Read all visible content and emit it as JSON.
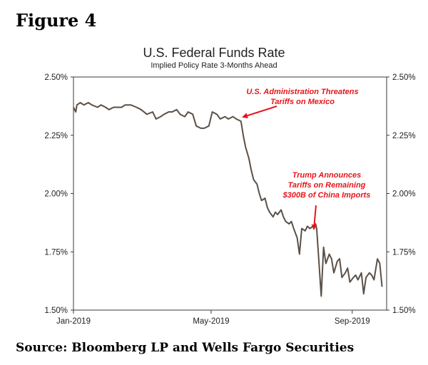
{
  "figure_label": "Figure 4",
  "source": "Source: Bloomberg LP and Wells Fargo Securities",
  "chart_data": {
    "type": "line",
    "title": "U.S. Federal Funds Rate",
    "subtitle": "Implied Policy Rate 3-Months Ahead",
    "xlabel": "",
    "ylabel": "",
    "x_ticks": [
      "Jan-2019",
      "May-2019",
      "Sep-2019"
    ],
    "y_ticks": [
      "2.50%",
      "2.25%",
      "2.00%",
      "1.75%",
      "1.50%"
    ],
    "ylim": [
      1.5,
      2.5
    ],
    "xlim": [
      "2019-01-01",
      "2019-10-01"
    ],
    "grid": false,
    "series_color": "#5b5047",
    "annotation_color": "#e8141a",
    "series": [
      {
        "x": [
          "2019-01-01",
          "2019-01-03",
          "2019-01-04",
          "2019-01-07",
          "2019-01-10",
          "2019-01-14",
          "2019-01-17",
          "2019-01-22",
          "2019-01-25",
          "2019-01-29",
          "2019-02-01",
          "2019-02-05",
          "2019-02-08",
          "2019-02-12",
          "2019-02-15",
          "2019-02-20",
          "2019-02-25",
          "2019-03-01",
          "2019-03-06",
          "2019-03-11",
          "2019-03-14",
          "2019-03-18",
          "2019-03-21",
          "2019-03-25",
          "2019-03-28",
          "2019-04-01",
          "2019-04-04",
          "2019-04-08",
          "2019-04-11",
          "2019-04-15",
          "2019-04-18",
          "2019-04-22",
          "2019-04-25",
          "2019-04-29",
          "2019-05-02",
          "2019-05-06",
          "2019-05-09",
          "2019-05-13",
          "2019-05-16",
          "2019-05-20",
          "2019-05-23",
          "2019-05-27",
          "2019-05-29",
          "2019-05-31",
          "2019-06-03",
          "2019-06-05",
          "2019-06-07",
          "2019-06-10",
          "2019-06-12",
          "2019-06-14",
          "2019-06-17",
          "2019-06-19",
          "2019-06-21",
          "2019-06-24",
          "2019-06-26",
          "2019-06-28",
          "2019-07-01",
          "2019-07-03",
          "2019-07-05",
          "2019-07-08",
          "2019-07-10",
          "2019-07-12",
          "2019-07-15",
          "2019-07-17",
          "2019-07-19",
          "2019-07-22",
          "2019-07-24",
          "2019-07-26",
          "2019-07-29",
          "2019-07-31",
          "2019-08-01",
          "2019-08-02",
          "2019-08-05",
          "2019-08-07",
          "2019-08-09",
          "2019-08-12",
          "2019-08-14",
          "2019-08-16",
          "2019-08-19",
          "2019-08-21",
          "2019-08-23",
          "2019-08-26",
          "2019-08-28",
          "2019-08-30",
          "2019-09-02",
          "2019-09-04",
          "2019-09-06",
          "2019-09-09",
          "2019-09-11",
          "2019-09-13",
          "2019-09-16",
          "2019-09-18",
          "2019-09-20",
          "2019-09-23",
          "2019-09-25",
          "2019-09-27"
        ],
        "values": [
          2.37,
          2.35,
          2.38,
          2.39,
          2.38,
          2.39,
          2.38,
          2.37,
          2.38,
          2.37,
          2.36,
          2.37,
          2.37,
          2.37,
          2.38,
          2.38,
          2.37,
          2.36,
          2.34,
          2.35,
          2.32,
          2.33,
          2.34,
          2.35,
          2.35,
          2.36,
          2.34,
          2.33,
          2.35,
          2.34,
          2.29,
          2.28,
          2.28,
          2.29,
          2.35,
          2.34,
          2.32,
          2.33,
          2.32,
          2.33,
          2.32,
          2.31,
          2.25,
          2.2,
          2.15,
          2.1,
          2.06,
          2.04,
          2.0,
          1.97,
          1.98,
          1.94,
          1.92,
          1.9,
          1.92,
          1.91,
          1.93,
          1.9,
          1.88,
          1.87,
          1.88,
          1.85,
          1.81,
          1.74,
          1.85,
          1.84,
          1.86,
          1.85,
          1.86,
          1.87,
          1.85,
          1.78,
          1.56,
          1.77,
          1.7,
          1.74,
          1.72,
          1.66,
          1.71,
          1.72,
          1.64,
          1.66,
          1.68,
          1.62,
          1.64,
          1.65,
          1.63,
          1.66,
          1.57,
          1.64,
          1.66,
          1.65,
          1.63,
          1.72,
          1.7,
          1.6
        ]
      }
    ],
    "annotations": [
      {
        "lines": [
          "U.S. Administration Threatens",
          "Tariffs on Mexico"
        ],
        "x": "2019-05-30",
        "y": 2.33
      },
      {
        "lines": [
          "Trump Announces",
          "Tariffs on Remaining",
          "$300B of China Imports"
        ],
        "x": "2019-08-01",
        "y": 1.86
      }
    ]
  }
}
